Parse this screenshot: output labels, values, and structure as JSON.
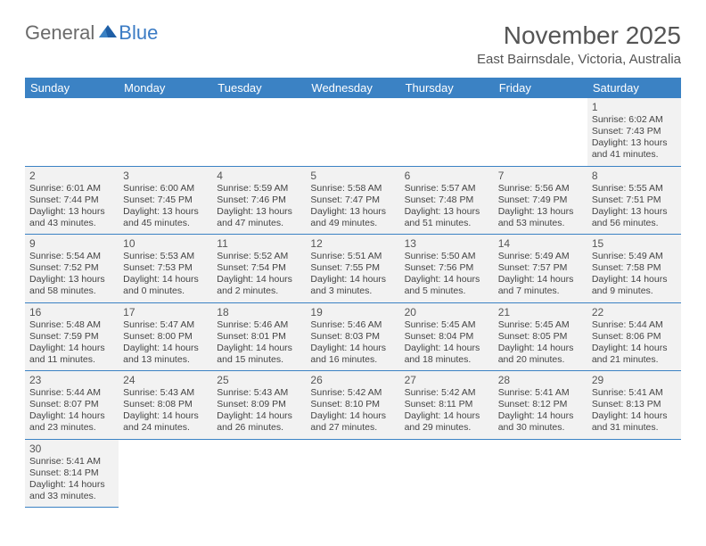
{
  "logo": {
    "textGeneral": "General",
    "textBlue": "Blue"
  },
  "title": "November 2025",
  "location": "East Bairnsdale, Victoria, Australia",
  "colors": {
    "headerBg": "#3b82c4",
    "headerText": "#ffffff",
    "cellBorder": "#3b82c4",
    "filledBg": "#f2f2f2",
    "textColor": "#444444"
  },
  "dayHeaders": [
    "Sunday",
    "Monday",
    "Tuesday",
    "Wednesday",
    "Thursday",
    "Friday",
    "Saturday"
  ],
  "leadingBlanks": 6,
  "days": [
    {
      "n": 1,
      "sr": "6:02 AM",
      "ss": "7:43 PM",
      "dl": "13 hours and 41 minutes."
    },
    {
      "n": 2,
      "sr": "6:01 AM",
      "ss": "7:44 PM",
      "dl": "13 hours and 43 minutes."
    },
    {
      "n": 3,
      "sr": "6:00 AM",
      "ss": "7:45 PM",
      "dl": "13 hours and 45 minutes."
    },
    {
      "n": 4,
      "sr": "5:59 AM",
      "ss": "7:46 PM",
      "dl": "13 hours and 47 minutes."
    },
    {
      "n": 5,
      "sr": "5:58 AM",
      "ss": "7:47 PM",
      "dl": "13 hours and 49 minutes."
    },
    {
      "n": 6,
      "sr": "5:57 AM",
      "ss": "7:48 PM",
      "dl": "13 hours and 51 minutes."
    },
    {
      "n": 7,
      "sr": "5:56 AM",
      "ss": "7:49 PM",
      "dl": "13 hours and 53 minutes."
    },
    {
      "n": 8,
      "sr": "5:55 AM",
      "ss": "7:51 PM",
      "dl": "13 hours and 56 minutes."
    },
    {
      "n": 9,
      "sr": "5:54 AM",
      "ss": "7:52 PM",
      "dl": "13 hours and 58 minutes."
    },
    {
      "n": 10,
      "sr": "5:53 AM",
      "ss": "7:53 PM",
      "dl": "14 hours and 0 minutes."
    },
    {
      "n": 11,
      "sr": "5:52 AM",
      "ss": "7:54 PM",
      "dl": "14 hours and 2 minutes."
    },
    {
      "n": 12,
      "sr": "5:51 AM",
      "ss": "7:55 PM",
      "dl": "14 hours and 3 minutes."
    },
    {
      "n": 13,
      "sr": "5:50 AM",
      "ss": "7:56 PM",
      "dl": "14 hours and 5 minutes."
    },
    {
      "n": 14,
      "sr": "5:49 AM",
      "ss": "7:57 PM",
      "dl": "14 hours and 7 minutes."
    },
    {
      "n": 15,
      "sr": "5:49 AM",
      "ss": "7:58 PM",
      "dl": "14 hours and 9 minutes."
    },
    {
      "n": 16,
      "sr": "5:48 AM",
      "ss": "7:59 PM",
      "dl": "14 hours and 11 minutes."
    },
    {
      "n": 17,
      "sr": "5:47 AM",
      "ss": "8:00 PM",
      "dl": "14 hours and 13 minutes."
    },
    {
      "n": 18,
      "sr": "5:46 AM",
      "ss": "8:01 PM",
      "dl": "14 hours and 15 minutes."
    },
    {
      "n": 19,
      "sr": "5:46 AM",
      "ss": "8:03 PM",
      "dl": "14 hours and 16 minutes."
    },
    {
      "n": 20,
      "sr": "5:45 AM",
      "ss": "8:04 PM",
      "dl": "14 hours and 18 minutes."
    },
    {
      "n": 21,
      "sr": "5:45 AM",
      "ss": "8:05 PM",
      "dl": "14 hours and 20 minutes."
    },
    {
      "n": 22,
      "sr": "5:44 AM",
      "ss": "8:06 PM",
      "dl": "14 hours and 21 minutes."
    },
    {
      "n": 23,
      "sr": "5:44 AM",
      "ss": "8:07 PM",
      "dl": "14 hours and 23 minutes."
    },
    {
      "n": 24,
      "sr": "5:43 AM",
      "ss": "8:08 PM",
      "dl": "14 hours and 24 minutes."
    },
    {
      "n": 25,
      "sr": "5:43 AM",
      "ss": "8:09 PM",
      "dl": "14 hours and 26 minutes."
    },
    {
      "n": 26,
      "sr": "5:42 AM",
      "ss": "8:10 PM",
      "dl": "14 hours and 27 minutes."
    },
    {
      "n": 27,
      "sr": "5:42 AM",
      "ss": "8:11 PM",
      "dl": "14 hours and 29 minutes."
    },
    {
      "n": 28,
      "sr": "5:41 AM",
      "ss": "8:12 PM",
      "dl": "14 hours and 30 minutes."
    },
    {
      "n": 29,
      "sr": "5:41 AM",
      "ss": "8:13 PM",
      "dl": "14 hours and 31 minutes."
    },
    {
      "n": 30,
      "sr": "5:41 AM",
      "ss": "8:14 PM",
      "dl": "14 hours and 33 minutes."
    }
  ],
  "labels": {
    "sunrise": "Sunrise:",
    "sunset": "Sunset:",
    "daylight": "Daylight:"
  }
}
